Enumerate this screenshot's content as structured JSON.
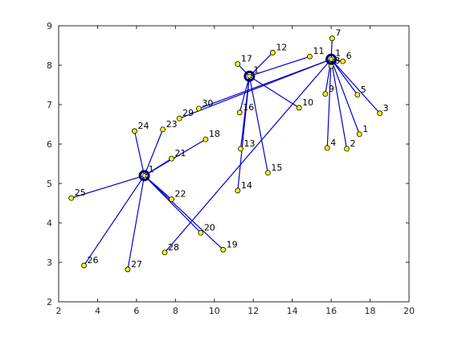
{
  "chart_data": {
    "type": "scatter",
    "title": "",
    "xlabel": "",
    "ylabel": "",
    "xlim": [
      2,
      20
    ],
    "ylim": [
      2,
      9
    ],
    "xticks": [
      2,
      4,
      6,
      8,
      10,
      12,
      14,
      16,
      18,
      20
    ],
    "yticks": [
      2,
      3,
      4,
      5,
      6,
      7,
      8,
      9
    ],
    "grid": false,
    "legend": "none",
    "colors": {
      "edge": "#0000cc",
      "node_fill": "#ffff00",
      "node_stroke": "#000000",
      "hub_ring": "#000066"
    },
    "hubs": [
      {
        "label": "1",
        "x": 6.4,
        "y": 5.2
      },
      {
        "label": "1",
        "x": 11.8,
        "y": 7.72
      },
      {
        "label": "1",
        "x": 16.0,
        "y": 8.15
      }
    ],
    "nodes": [
      {
        "label": "2",
        "x": 16.8,
        "y": 5.88,
        "hub": 2
      },
      {
        "label": "1",
        "x": 17.45,
        "y": 6.25,
        "hub": 2
      },
      {
        "label": "3",
        "x": 18.5,
        "y": 6.78,
        "hub": 2
      },
      {
        "label": "4",
        "x": 15.8,
        "y": 5.9,
        "hub": 2
      },
      {
        "label": "5",
        "x": 17.35,
        "y": 7.25,
        "hub": 2
      },
      {
        "label": "6",
        "x": 16.6,
        "y": 8.1,
        "hub": 2
      },
      {
        "label": "7",
        "x": 16.05,
        "y": 8.68,
        "hub": 2
      },
      {
        "label": "8",
        "x": 16.0,
        "y": 7.98,
        "hub": 2
      },
      {
        "label": "9",
        "x": 15.7,
        "y": 7.27,
        "hub": 2
      },
      {
        "label": "10",
        "x": 14.35,
        "y": 6.92,
        "hub": 1
      },
      {
        "label": "11",
        "x": 14.9,
        "y": 8.22,
        "hub": 1
      },
      {
        "label": "12",
        "x": 13.0,
        "y": 8.32,
        "hub": 1
      },
      {
        "label": "13",
        "x": 11.35,
        "y": 5.88,
        "hub": 1
      },
      {
        "label": "14",
        "x": 11.2,
        "y": 4.82,
        "hub": 1
      },
      {
        "label": "15",
        "x": 12.75,
        "y": 5.27,
        "hub": 1
      },
      {
        "label": "16",
        "x": 11.3,
        "y": 6.8,
        "hub": 1
      },
      {
        "label": "17",
        "x": 11.2,
        "y": 8.03,
        "hub": 1
      },
      {
        "label": "18",
        "x": 9.55,
        "y": 6.12,
        "hub": 0
      },
      {
        "label": "19",
        "x": 10.45,
        "y": 3.32,
        "hub": 0
      },
      {
        "label": "20",
        "x": 9.3,
        "y": 3.75,
        "hub": 0
      },
      {
        "label": "21",
        "x": 7.8,
        "y": 5.63,
        "hub": 0
      },
      {
        "label": "22",
        "x": 7.8,
        "y": 4.6,
        "hub": 0
      },
      {
        "label": "23",
        "x": 7.35,
        "y": 6.37,
        "hub": 0
      },
      {
        "label": "24",
        "x": 5.9,
        "y": 6.33,
        "hub": 0
      },
      {
        "label": "25",
        "x": 2.65,
        "y": 4.63,
        "hub": 0
      },
      {
        "label": "26",
        "x": 3.3,
        "y": 2.92,
        "hub": 0
      },
      {
        "label": "27",
        "x": 5.55,
        "y": 2.82,
        "hub": 0
      },
      {
        "label": "28",
        "x": 7.45,
        "y": 3.25,
        "hub": 2
      },
      {
        "label": "29",
        "x": 8.2,
        "y": 6.65,
        "hub": 2
      },
      {
        "label": "30",
        "x": 9.2,
        "y": 6.9,
        "hub": 2
      }
    ]
  }
}
